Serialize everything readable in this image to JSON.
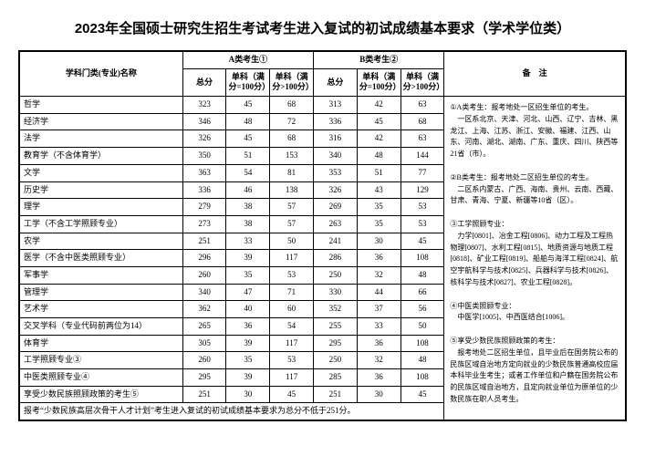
{
  "title": "2023年全国硕士研究生招生考试考生进入复试的初试成绩基本要求（学术学位类）",
  "header": {
    "subject": "学科门类(专业)名称",
    "groupA": "A类考生①",
    "groupB": "B类考生②",
    "total": "总分",
    "single100": "单科（满分=100分）",
    "singleOver100": "单科（满分>100分）",
    "notes": "备　注"
  },
  "rows": [
    {
      "name": "哲学",
      "a": [
        323,
        45,
        68
      ],
      "b": [
        313,
        42,
        63
      ]
    },
    {
      "name": "经济学",
      "a": [
        346,
        48,
        72
      ],
      "b": [
        336,
        45,
        68
      ]
    },
    {
      "name": "法学",
      "a": [
        326,
        45,
        68
      ],
      "b": [
        316,
        42,
        63
      ]
    },
    {
      "name": "教育学（不含体育学）",
      "a": [
        350,
        51,
        153
      ],
      "b": [
        340,
        48,
        144
      ]
    },
    {
      "name": "文学",
      "a": [
        363,
        54,
        81
      ],
      "b": [
        353,
        51,
        77
      ]
    },
    {
      "name": "历史学",
      "a": [
        336,
        46,
        138
      ],
      "b": [
        326,
        43,
        129
      ]
    },
    {
      "name": "理学",
      "a": [
        279,
        38,
        57
      ],
      "b": [
        269,
        35,
        53
      ]
    },
    {
      "name": "工学（不含工学照顾专业）",
      "a": [
        273,
        38,
        57
      ],
      "b": [
        263,
        35,
        53
      ]
    },
    {
      "name": "农学",
      "a": [
        251,
        33,
        50
      ],
      "b": [
        241,
        30,
        45
      ]
    },
    {
      "name": "医学（不含中医类照顾专业）",
      "a": [
        296,
        39,
        117
      ],
      "b": [
        286,
        36,
        108
      ]
    },
    {
      "name": "军事学",
      "a": [
        260,
        35,
        53
      ],
      "b": [
        250,
        32,
        48
      ]
    },
    {
      "name": "管理学",
      "a": [
        340,
        47,
        71
      ],
      "b": [
        330,
        44,
        66
      ]
    },
    {
      "name": "艺术学",
      "a": [
        362,
        40,
        60
      ],
      "b": [
        352,
        37,
        56
      ]
    },
    {
      "name": "交叉学科（专业代码前两位为14）",
      "a": [
        265,
        36,
        54
      ],
      "b": [
        255,
        33,
        50
      ]
    },
    {
      "name": "体育学",
      "a": [
        305,
        39,
        117
      ],
      "b": [
        295,
        36,
        108
      ]
    },
    {
      "name": "工学照顾专业③",
      "a": [
        260,
        35,
        53
      ],
      "b": [
        250,
        32,
        48
      ]
    },
    {
      "name": "中医类照顾专业④",
      "a": [
        295,
        39,
        117
      ],
      "b": [
        285,
        36,
        108
      ]
    },
    {
      "name": "享受少数民族照顾政策的考生⑤",
      "a": [
        251,
        30,
        45
      ],
      "b": [
        251,
        30,
        45
      ]
    }
  ],
  "footnote": "报考“少数民族高层次骨干人才计划”考生进入复试的初试成绩基本要求为总分不低于251分。",
  "notesText": "①A类考生：报考地处一区招生单位的考生。\n　一区系北京、天津、河北、山西、辽宁、吉林、黑龙江、上海、江苏、浙江、安徽、福建、江西、山东、河南、湖北、湖南、广东、重庆、四川、陕西等21省（市）。\n\n②B类考生：报考地处二区招生单位的考生。\n　二区系内蒙古、广西、海南、贵州、云南、西藏、甘肃、青海、宁夏、新疆等10省（区）。\n\n③工学照顾专业：\n　力学[0801]、冶金工程[0806]、动力工程及工程热物理[0807]、水利工程[0815]、地质资源与地质工程[0818]、矿业工程[0819]、船舶与海洋工程[0824]、航空宇航科学与技术[0825]、兵器科学与技术[0826]、核科学与技术[0827]、农业工程[0828]。\n\n④中医类照顾专业：\n　中医学[1005]、中西医结合[1006]。\n\n⑤享受少数民族照顾政策的考生：\n　报考地处二区招生单位，且毕业后在国务院公布的民族区域自治地方定向就业的少数民族普通高校应届本科毕业生考生；或者工作单位和户籍在国务院公布的民族区域自治地方，且定向就业单位为原单位的少数民族在职人员考生。"
}
